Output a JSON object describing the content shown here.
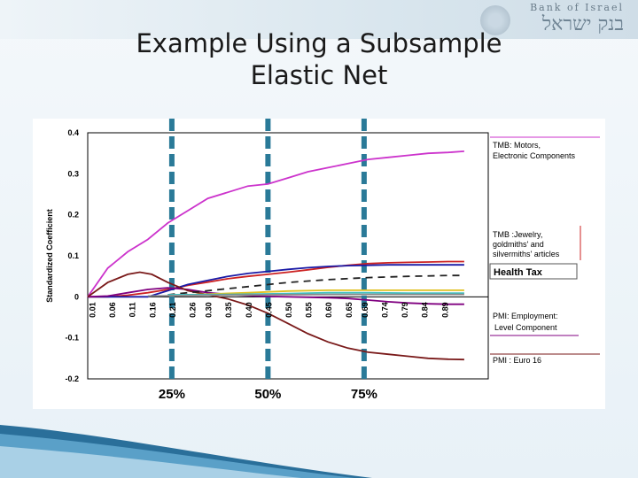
{
  "slide": {
    "title_line1": "Example Using a Subsample",
    "title_line2": "Elastic Net",
    "logo_en": "Bank of Israel",
    "logo_he": "בנק ישראל"
  },
  "chart_data": {
    "type": "line",
    "ylabel": "Standardized Coefficient",
    "ylim": [
      -0.2,
      0.4
    ],
    "yticks": [
      "0.4",
      "0.3",
      "0.2",
      "0.1",
      "0",
      "-0.1",
      "-0.2"
    ],
    "xlim": [
      0,
      1
    ],
    "x_tick_labels": [
      "0.01",
      "0.06",
      "0.11",
      "0.16",
      "0.21",
      "0.26",
      "0.30",
      "0.35",
      "0.40",
      "0.45",
      "0.50",
      "0.55",
      "0.60",
      "0.65",
      "0.69",
      "0.74",
      "0.79",
      "0.84",
      "0.89"
    ],
    "x_tick_values": [
      0.01,
      0.06,
      0.11,
      0.16,
      0.21,
      0.26,
      0.3,
      0.35,
      0.4,
      0.45,
      0.5,
      0.55,
      0.6,
      0.65,
      0.69,
      0.74,
      0.79,
      0.84,
      0.89
    ],
    "markers": [
      {
        "x": 0.21,
        "label": "25%"
      },
      {
        "x": 0.45,
        "label": "50%"
      },
      {
        "x": 0.69,
        "label": "75%"
      }
    ],
    "series": [
      {
        "name": "TMB: Motors, Electronic Components",
        "color": "#cc33cc",
        "x": [
          0,
          0.05,
          0.1,
          0.15,
          0.2,
          0.25,
          0.3,
          0.35,
          0.4,
          0.45,
          0.5,
          0.55,
          0.6,
          0.65,
          0.7,
          0.75,
          0.8,
          0.85,
          0.9,
          0.94
        ],
        "y": [
          0,
          0.07,
          0.11,
          0.14,
          0.18,
          0.21,
          0.24,
          0.255,
          0.27,
          0.275,
          0.29,
          0.305,
          0.315,
          0.325,
          0.335,
          0.34,
          0.345,
          0.35,
          0.352,
          0.355
        ]
      },
      {
        "name": "TMB: 'Jewelry, goldmiths' and silvermiths' articles",
        "color": "#cc2222",
        "x": [
          0,
          0.05,
          0.1,
          0.15,
          0.2,
          0.25,
          0.3,
          0.35,
          0.4,
          0.45,
          0.5,
          0.55,
          0.6,
          0.65,
          0.7,
          0.75,
          0.8,
          0.85,
          0.9,
          0.94
        ],
        "y": [
          0,
          0,
          0.004,
          0.01,
          0.018,
          0.028,
          0.036,
          0.044,
          0.05,
          0.055,
          0.06,
          0.066,
          0.072,
          0.077,
          0.081,
          0.083,
          0.084,
          0.085,
          0.086,
          0.086
        ]
      },
      {
        "name": "Health Tax",
        "color": "#1a1aa6",
        "x": [
          0,
          0.15,
          0.2,
          0.25,
          0.3,
          0.35,
          0.4,
          0.45,
          0.5,
          0.55,
          0.6,
          0.65,
          0.7,
          0.75,
          0.8,
          0.85,
          0.9,
          0.94
        ],
        "y": [
          0,
          0,
          0.015,
          0.03,
          0.04,
          0.05,
          0.057,
          0.062,
          0.067,
          0.071,
          0.074,
          0.076,
          0.077,
          0.078,
          0.078,
          0.078,
          0.078,
          0.078
        ]
      },
      {
        "name": "PMI: Employment: Level Component",
        "color": "#800080",
        "x": [
          0,
          0.05,
          0.1,
          0.15,
          0.2,
          0.25,
          0.3,
          0.35,
          0.4,
          0.45,
          0.5,
          0.55,
          0.6,
          0.65,
          0.7,
          0.75,
          0.8,
          0.85,
          0.9,
          0.94
        ],
        "y": [
          0,
          0.002,
          0.01,
          0.018,
          0.022,
          0.018,
          0.01,
          0.006,
          0.003,
          0.001,
          0,
          -0.001,
          -0.002,
          -0.004,
          -0.008,
          -0.012,
          -0.015,
          -0.017,
          -0.018,
          -0.018
        ]
      },
      {
        "name": "PMI : Euro 16",
        "color": "#7a1a1a",
        "x": [
          0,
          0.05,
          0.1,
          0.13,
          0.16,
          0.2,
          0.25,
          0.3,
          0.35,
          0.4,
          0.45,
          0.5,
          0.55,
          0.6,
          0.65,
          0.7,
          0.75,
          0.8,
          0.85,
          0.9,
          0.94
        ],
        "y": [
          0,
          0.035,
          0.055,
          0.06,
          0.055,
          0.035,
          0.015,
          0.005,
          -0.005,
          -0.02,
          -0.04,
          -0.065,
          -0.09,
          -0.11,
          -0.125,
          -0.135,
          -0.14,
          -0.145,
          -0.15,
          -0.152,
          -0.153
        ]
      },
      {
        "color": "#222222",
        "dash": "8,6",
        "x": [
          0.2,
          0.3,
          0.4,
          0.5,
          0.6,
          0.7,
          0.8,
          0.9,
          0.94
        ],
        "y": [
          0.005,
          0.015,
          0.025,
          0.035,
          0.042,
          0.047,
          0.05,
          0.052,
          0.052
        ]
      },
      {
        "color": "#e0c020",
        "x": [
          0.25,
          0.4,
          0.5,
          0.6,
          0.7,
          0.8,
          0.9,
          0.94
        ],
        "y": [
          0.005,
          0.01,
          0.014,
          0.016,
          0.016,
          0.016,
          0.016,
          0.016
        ]
      },
      {
        "color": "#40c0c0",
        "x": [
          0.2,
          0.35,
          0.5,
          0.6,
          0.7,
          0.8,
          0.9,
          0.94
        ],
        "y": [
          0.005,
          0.006,
          0.008,
          0.01,
          0.01,
          0.009,
          0.009,
          0.009
        ]
      },
      {
        "color": "#888888",
        "x": [
          0.15,
          0.3,
          0.45,
          0.6,
          0.75,
          0.9,
          0.94
        ],
        "y": [
          0.002,
          0.004,
          0.005,
          0.006,
          0.006,
          0.006,
          0.006
        ]
      }
    ]
  }
}
